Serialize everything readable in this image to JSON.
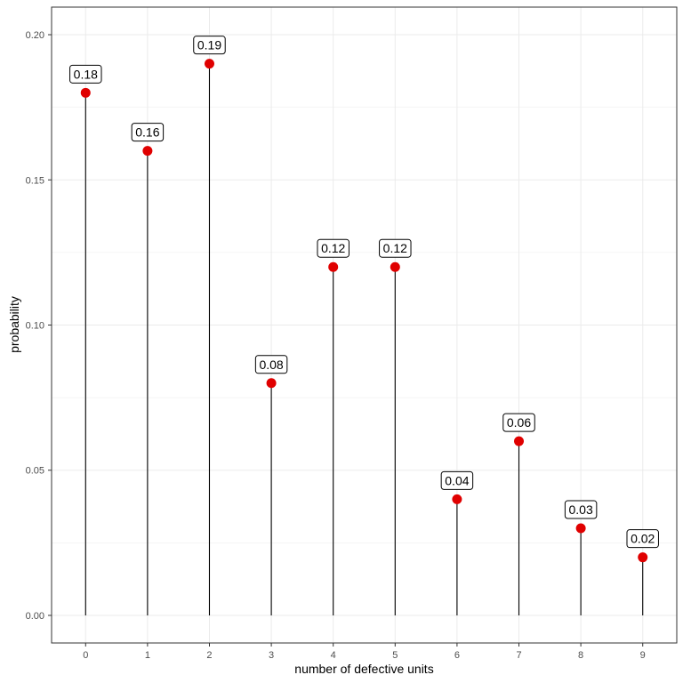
{
  "chart_data": {
    "type": "lollipop",
    "x": [
      0,
      1,
      2,
      3,
      4,
      5,
      6,
      7,
      8,
      9
    ],
    "values": [
      0.18,
      0.16,
      0.19,
      0.08,
      0.12,
      0.12,
      0.04,
      0.06,
      0.03,
      0.02
    ],
    "data_labels": [
      "0.18",
      "0.16",
      "0.19",
      "0.08",
      "0.12",
      "0.12",
      "0.04",
      "0.06",
      "0.03",
      "0.02"
    ],
    "x_tick_labels": [
      "0",
      "1",
      "2",
      "3",
      "4",
      "5",
      "6",
      "7",
      "8",
      "9"
    ],
    "y_ticks": [
      0.0,
      0.05,
      0.1,
      0.15,
      0.2
    ],
    "y_tick_labels": [
      "0.00",
      "0.05",
      "0.10",
      "0.15",
      "0.20"
    ],
    "xlabel": "number of defective units",
    "ylabel": "probability",
    "xlim": [
      -0.55,
      9.55
    ],
    "ylim": [
      -0.0095,
      0.2095
    ],
    "grid": true,
    "point_color": "#e00000",
    "stem_color": "#000000",
    "grid_color": "#ebebeb"
  }
}
